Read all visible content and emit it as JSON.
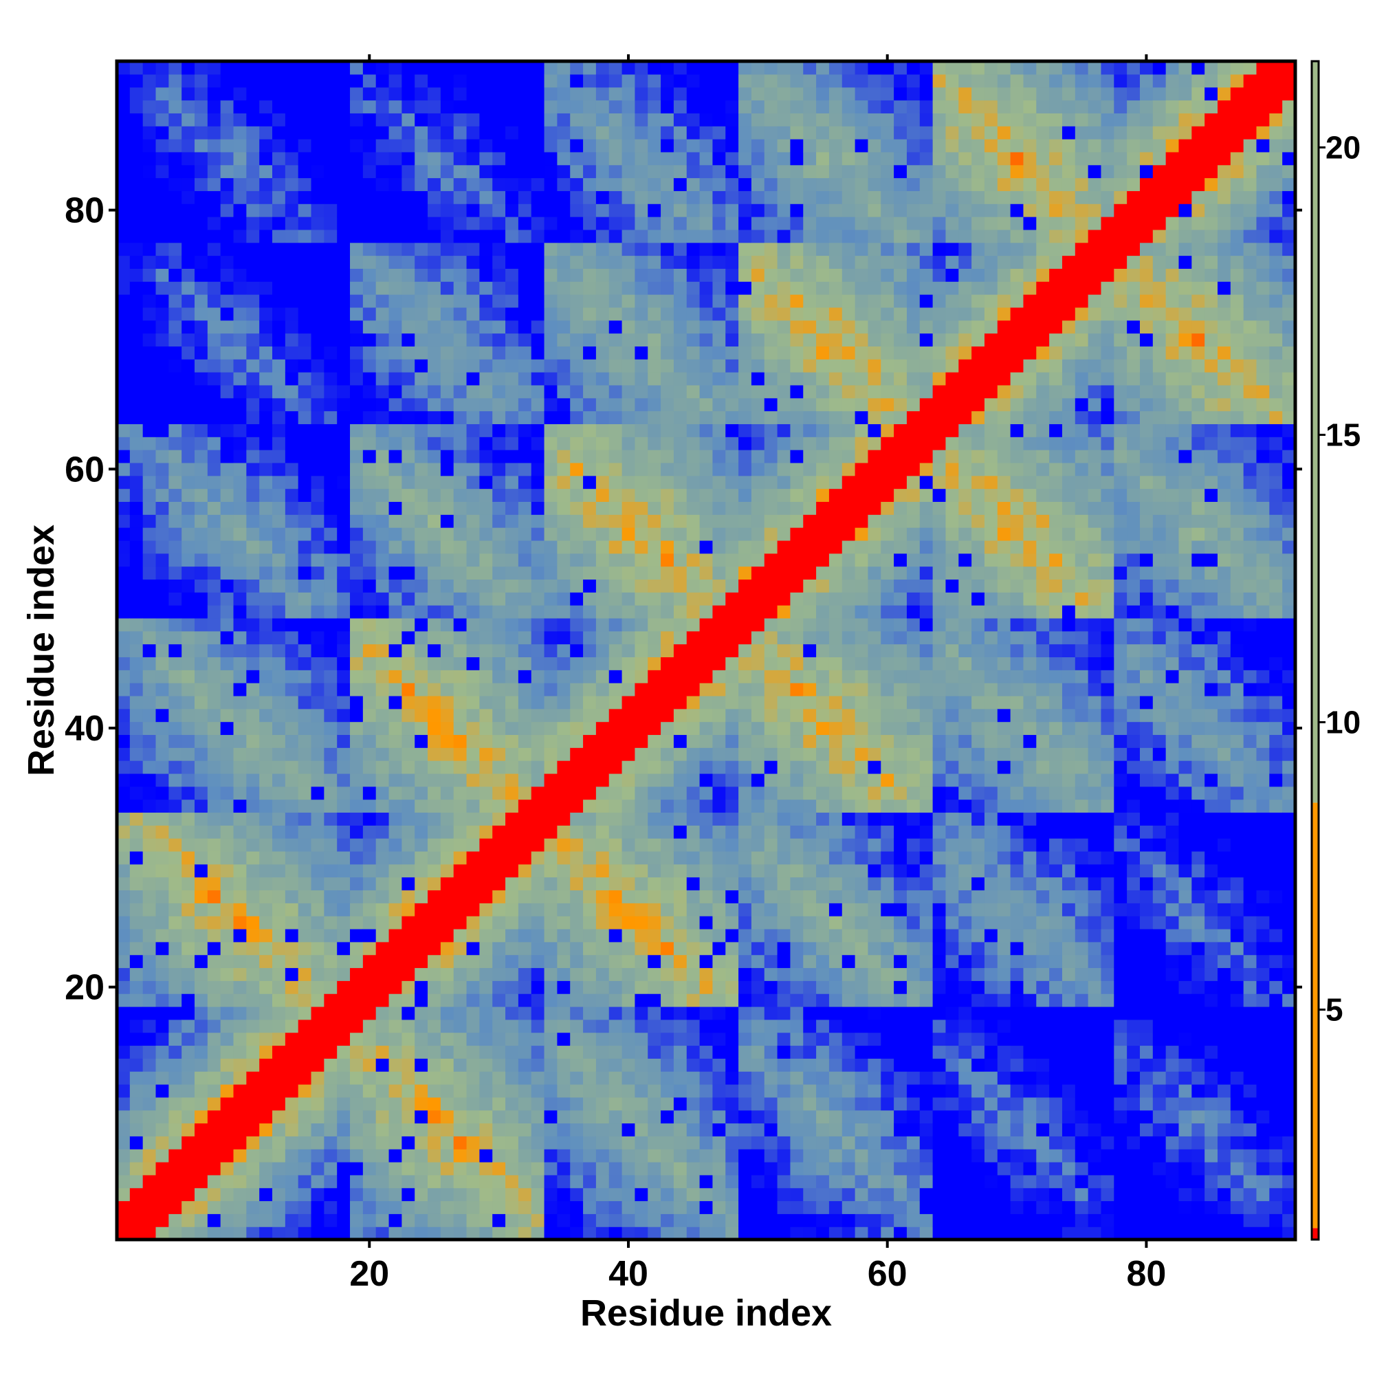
{
  "chart_data": {
    "type": "heatmap",
    "title": "",
    "xlabel": "Residue index",
    "ylabel": "Residue index",
    "xlim": [
      0.5,
      91.5
    ],
    "ylim": [
      0.5,
      91.5
    ],
    "n_residues": 91,
    "x_ticks": [
      20,
      40,
      60,
      80
    ],
    "y_ticks": [
      20,
      40,
      60,
      80
    ],
    "x_tick_labels": [
      "20",
      "40",
      "60",
      "80"
    ],
    "y_tick_labels": [
      "20",
      "40",
      "60",
      "80"
    ],
    "colorbar": {
      "range": [
        1,
        21.5
      ],
      "ticks": [
        5,
        10,
        15,
        20
      ],
      "tick_labels": [
        "5",
        "10",
        "15",
        "20"
      ],
      "bands": [
        {
          "max": 1.2,
          "color": "#ff0000"
        },
        {
          "max": 8.6,
          "color": "#ff9900"
        },
        {
          "max": 21.5,
          "color": "#9fba8a"
        }
      ]
    },
    "color_scale": [
      {
        "value": 0,
        "color": "#ff0000"
      },
      {
        "value": 4,
        "color": "#ff0000"
      },
      {
        "value": 6,
        "color": "#ff9900"
      },
      {
        "value": 9,
        "color": "#9fba8a"
      },
      {
        "value": 16,
        "color": "#5f8fc0"
      },
      {
        "value": 20,
        "color": "#0000ff"
      }
    ],
    "cutoff_value": 20,
    "cutoff_color": "#0000ff",
    "structure": {
      "description_note": "contact/distance map of a 6-helix bundle-like domain",
      "segment_boundaries": [
        1,
        18,
        33,
        48,
        63,
        77,
        91
      ],
      "segment_centers": [
        9.5,
        25.5,
        40.5,
        55.5,
        70,
        84
      ]
    }
  }
}
